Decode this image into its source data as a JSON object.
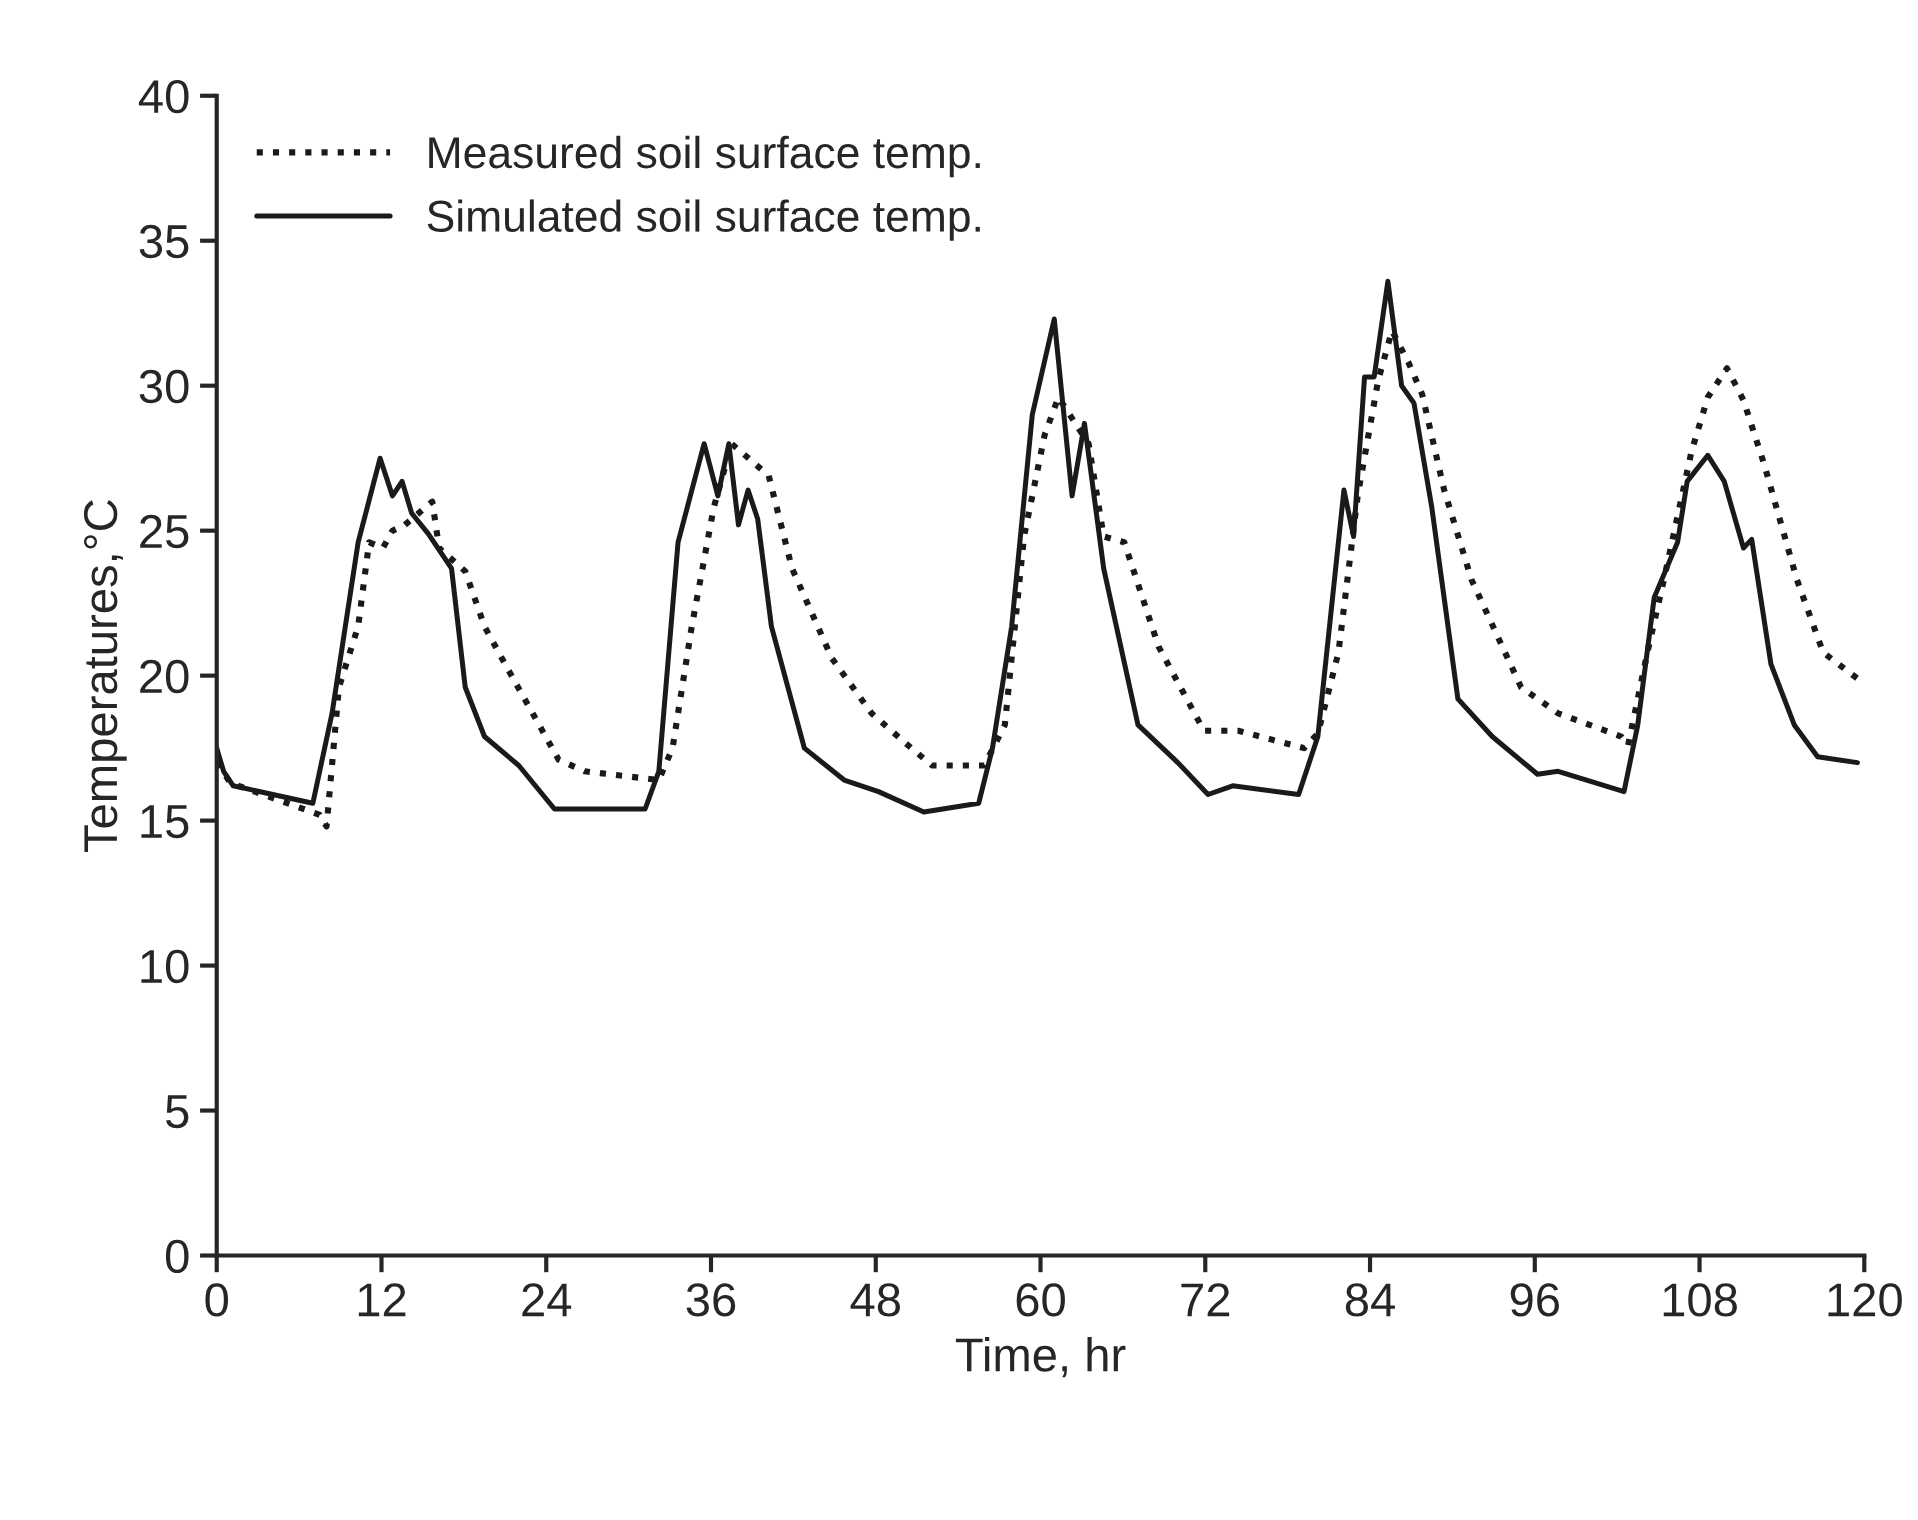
{
  "chart_data": {
    "type": "line",
    "xlabel": "Time, hr",
    "ylabel": "Temperatures,°C",
    "xlim": [
      0,
      120
    ],
    "xticks": [
      0,
      12,
      24,
      36,
      48,
      60,
      72,
      84,
      96,
      108,
      120
    ],
    "ylim": [
      0,
      40
    ],
    "yticks": [
      0,
      5,
      10,
      15,
      20,
      25,
      30,
      35,
      40
    ],
    "grid": false,
    "legend": "top left",
    "series": [
      {
        "name": "Measured soil surface temp.",
        "color": "#1a1a1a",
        "line_style": "dotted",
        "x": [
          0,
          1,
          7.5,
          8,
          8.9,
          10.3,
          11.1,
          12.1,
          12.8,
          13.7,
          15.7,
          16.2,
          18.1,
          19.5,
          21,
          24.9,
          26.8,
          32.2,
          33.2,
          34.6,
          36.2,
          37.5,
          40.2,
          41.9,
          44.8,
          47.7,
          50.1,
          52.1,
          55.9,
          57.4,
          58.8,
          60.3,
          61.3,
          63.5,
          64.6,
          66.1,
          68.6,
          71.9,
          74.4,
          79.2,
          80.2,
          81.7,
          83.1,
          84.6,
          85.6,
          86.8,
          87.8,
          89.4,
          91.4,
          95,
          97.7,
          102.3,
          102.8,
          104.2,
          105.4,
          107.4,
          108.6,
          110,
          111.2,
          112.7,
          115.1,
          117,
          119.5
        ],
        "values": [
          17,
          16.3,
          15.2,
          14.8,
          19.6,
          21.7,
          24.6,
          24.4,
          25,
          25.2,
          26,
          24.4,
          23.6,
          21.7,
          20.4,
          17.1,
          16.7,
          16.4,
          17.5,
          21.7,
          25.8,
          28,
          26.9,
          23.7,
          20.6,
          18.7,
          17.7,
          16.9,
          16.9,
          18.3,
          24.8,
          28.3,
          29.6,
          28,
          24.8,
          24.6,
          21,
          18.1,
          18.1,
          17.5,
          18,
          20.8,
          26.2,
          30.2,
          31.9,
          30.8,
          29.7,
          26.4,
          23.3,
          19.6,
          18.7,
          17.9,
          17.6,
          20.8,
          23.3,
          27.7,
          29.6,
          30.6,
          29.5,
          27.3,
          23.3,
          20.8,
          19.9
        ]
      },
      {
        "name": "Simulated soil surface temp.",
        "color": "#1a1a1a",
        "line_style": "solid",
        "x": [
          0,
          0.5,
          1.2,
          7,
          8.4,
          10.3,
          11.9,
          12.8,
          13.5,
          14.2,
          15.4,
          17.1,
          18.1,
          19.5,
          22,
          24.6,
          31.2,
          32.2,
          33.6,
          35.5,
          36.5,
          37.3,
          38,
          38.7,
          39.4,
          40.4,
          42.8,
          45.7,
          48.2,
          51.5,
          55.5,
          56.5,
          57.9,
          59.4,
          61,
          62.3,
          63.2,
          64.6,
          67.1,
          70,
          72.2,
          74,
          78.8,
          80.2,
          82.1,
          82.8,
          83.6,
          84.3,
          85.3,
          86.3,
          87.2,
          88.5,
          90.4,
          92.9,
          96.2,
          97.7,
          102.5,
          103.5,
          104.7,
          106.4,
          107.1,
          108.6,
          109.8,
          111.2,
          111.8,
          113.2,
          114.9,
          116.6,
          119.5
        ],
        "values": [
          17.5,
          16.7,
          16.2,
          15.6,
          18.7,
          24.6,
          27.5,
          26.2,
          26.7,
          25.6,
          24.9,
          23.7,
          19.6,
          17.9,
          16.9,
          15.4,
          15.4,
          16.7,
          24.6,
          28,
          26.2,
          28,
          25.2,
          26.4,
          25.4,
          21.7,
          17.5,
          16.4,
          16,
          15.3,
          15.6,
          17.5,
          21.7,
          29,
          32.3,
          26.2,
          28.7,
          23.7,
          18.3,
          17,
          15.9,
          16.2,
          15.9,
          17.9,
          26.4,
          24.8,
          30.3,
          30.3,
          33.6,
          30,
          29.4,
          25.8,
          19.2,
          17.9,
          16.6,
          16.7,
          16,
          18.3,
          22.7,
          24.6,
          26.7,
          27.6,
          26.7,
          24.4,
          24.7,
          20.4,
          18.3,
          17.2,
          17
        ]
      }
    ]
  }
}
